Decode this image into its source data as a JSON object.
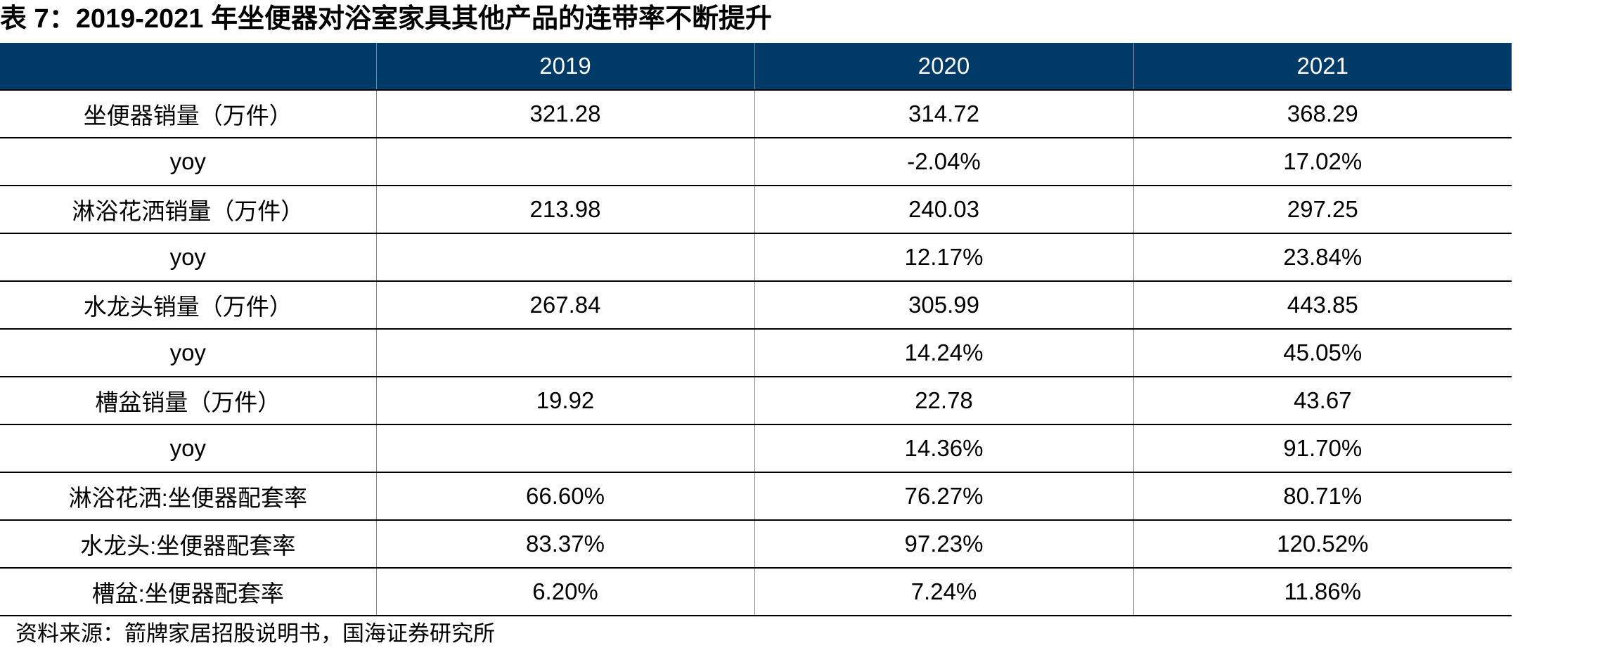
{
  "title": "表 7：2019-2021 年坐便器对浴室家具其他产品的连带率不断提升",
  "table": {
    "header": [
      null,
      "2019",
      "2020",
      "2021"
    ],
    "rows": [
      [
        "坐便器销量（万件）",
        "321.28",
        "314.72",
        "368.29"
      ],
      [
        "yoy",
        null,
        "-2.04%",
        "17.02%"
      ],
      [
        "淋浴花洒销量（万件）",
        "213.98",
        "240.03",
        "297.25"
      ],
      [
        "yoy",
        null,
        "12.17%",
        "23.84%"
      ],
      [
        "水龙头销量（万件）",
        "267.84",
        "305.99",
        "443.85"
      ],
      [
        "yoy",
        null,
        "14.24%",
        "45.05%"
      ],
      [
        "槽盆销量（万件）",
        "19.92",
        "22.78",
        "43.67"
      ],
      [
        "yoy",
        null,
        "14.36%",
        "91.70%"
      ],
      [
        "淋浴花洒:坐便器配套率",
        "66.60%",
        "76.27%",
        "80.71%"
      ],
      [
        "水龙头:坐便器配套率",
        "83.37%",
        "97.23%",
        "120.52%"
      ],
      [
        "槽盆:坐便器配套率",
        "6.20%",
        "7.24%",
        "11.86%"
      ]
    ]
  },
  "source": "资料来源：箭牌家居招股说明书，国海证券研究所"
}
